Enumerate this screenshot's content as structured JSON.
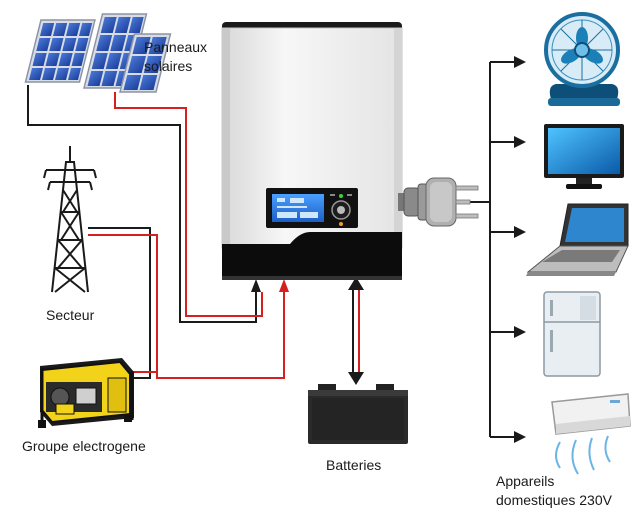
{
  "labels": {
    "solar_panels": [
      "Panneaux",
      "solaires"
    ],
    "grid": "Secteur",
    "generator": "Groupe electrogene",
    "batteries": "Batteries",
    "appliances": [
      "Appareils",
      "domestiques 230V"
    ]
  },
  "icons": {
    "sources": [
      "solar-panel-icon",
      "power-pylon-icon",
      "generator-icon"
    ],
    "storage": "battery-icon",
    "loads": [
      "fan-icon",
      "tv-icon",
      "laptop-icon",
      "refrigerator-icon",
      "air-conditioner-icon"
    ]
  },
  "colors": {
    "wire_black": "#1a1a1a",
    "wire_red": "#d62020",
    "generator_yellow": "#f3d21a",
    "display_blue": "#2f7fe0",
    "inverter_base": "#0c0c0c"
  }
}
